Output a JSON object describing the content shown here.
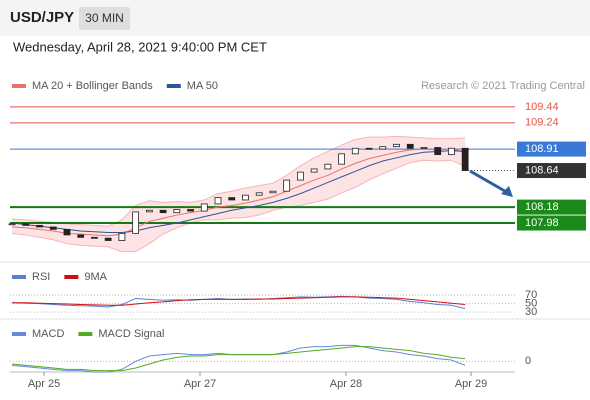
{
  "header": {
    "symbol": "USD/JPY",
    "timeframe": "30 MIN",
    "date": "Wednesday, April 28, 2021 9:40:00 PM CET",
    "credit": "Research © 2021 Trading Central"
  },
  "chart_data": [
    {
      "type": "candlestick",
      "values": [
        107.97,
        107.95,
        107.93,
        107.9,
        107.83,
        107.8,
        107.79,
        107.76,
        107.85,
        108.12,
        108.14,
        108.11,
        108.15,
        108.13,
        108.22,
        108.3,
        108.27,
        108.33,
        108.36,
        108.38,
        108.52,
        108.62,
        108.66,
        108.72,
        108.85,
        108.92,
        108.91,
        108.94,
        108.97,
        108.92,
        108.93,
        108.84,
        108.92,
        108.64
      ],
      "series": [
        {
          "name": "MA 20 + Bollinger Bands",
          "color": "#e8736c",
          "values": [
            107.93,
            107.92,
            107.9,
            107.88,
            107.85,
            107.84,
            107.83,
            107.82,
            107.84,
            107.92,
            108.0,
            108.04,
            108.08,
            108.11,
            108.14,
            108.18,
            108.2,
            108.23,
            108.27,
            108.31,
            108.38,
            108.45,
            108.52,
            108.58,
            108.66,
            108.73,
            108.79,
            108.83,
            108.87,
            108.9,
            108.91,
            108.9,
            108.91,
            108.87
          ],
          "upper": [
            108.03,
            108.02,
            108.0,
            107.99,
            107.97,
            107.96,
            107.95,
            107.94,
            108.02,
            108.2,
            108.26,
            108.24,
            108.25,
            108.24,
            108.27,
            108.35,
            108.38,
            108.42,
            108.45,
            108.48,
            108.58,
            108.7,
            108.8,
            108.88,
            108.96,
            109.03,
            109.06,
            109.06,
            109.07,
            109.06,
            109.05,
            109.04,
            109.04,
            109.05
          ],
          "lower": [
            107.85,
            107.83,
            107.8,
            107.77,
            107.72,
            107.7,
            107.69,
            107.68,
            107.62,
            107.62,
            107.72,
            107.84,
            107.92,
            107.98,
            108.02,
            108.02,
            108.04,
            108.05,
            108.08,
            108.14,
            108.18,
            108.2,
            108.24,
            108.28,
            108.36,
            108.43,
            108.52,
            108.6,
            108.67,
            108.74,
            108.77,
            108.76,
            108.77,
            108.69
          ]
        },
        {
          "name": "MA 50",
          "color": "#2f5597",
          "values": [
            107.98,
            107.96,
            107.94,
            107.92,
            107.9,
            107.88,
            107.87,
            107.86,
            107.86,
            107.88,
            107.92,
            107.95,
            107.98,
            108.02,
            108.06,
            108.1,
            108.14,
            108.17,
            108.2,
            108.24,
            108.29,
            108.35,
            108.42,
            108.49,
            108.56,
            108.63,
            108.7,
            108.76,
            108.8,
            108.84,
            108.87,
            108.88,
            108.89,
            108.88
          ]
        }
      ],
      "levels": [
        {
          "value": 109.44,
          "color": "#e8534a"
        },
        {
          "value": 109.24,
          "color": "#e8534a"
        },
        {
          "value": 108.91,
          "color": "#3a78d8"
        },
        {
          "value": 108.64,
          "color": "#333333"
        },
        {
          "value": 108.18,
          "color": "#1a8a1a"
        },
        {
          "value": 107.98,
          "color": "#1a8a1a"
        }
      ],
      "ylim": [
        107.54,
        109.59
      ],
      "xlim": [
        -0.15,
        36.63
      ],
      "xticks": [
        {
          "value": 2.33,
          "label": "Apr 25"
        },
        {
          "value": 13.69,
          "label": "Apr 27"
        },
        {
          "value": 24.32,
          "label": "Apr 28"
        },
        {
          "value": 33.43,
          "label": "Apr 29"
        }
      ]
    },
    {
      "type": "line",
      "series": [
        {
          "name": "RSI",
          "color": "#5b7fd0",
          "values": [
            52,
            51,
            50,
            48,
            46,
            45,
            44,
            42,
            48,
            62,
            60,
            58,
            59,
            58,
            60,
            62,
            60,
            61,
            60,
            62,
            64,
            66,
            65,
            66,
            67,
            66,
            63,
            62,
            60,
            55,
            52,
            48,
            46,
            38
          ]
        },
        {
          "name": "9MA",
          "color": "#cc1111",
          "values": [
            52,
            52,
            51,
            50,
            49,
            48,
            47,
            46,
            46,
            49,
            52,
            54,
            57,
            59,
            60,
            60,
            60,
            60,
            61,
            61,
            62,
            63,
            64,
            65,
            66,
            66,
            65,
            64,
            63,
            60,
            57,
            54,
            51,
            48
          ]
        }
      ],
      "ylim": [
        16,
        94
      ],
      "yticks": [
        70,
        50,
        30
      ]
    },
    {
      "type": "line",
      "series": [
        {
          "name": "MACD",
          "color": "#6688dd",
          "values": [
            -0.03,
            -0.04,
            -0.05,
            -0.06,
            -0.07,
            -0.07,
            -0.08,
            -0.08,
            -0.06,
            0.0,
            0.04,
            0.05,
            0.06,
            0.05,
            0.05,
            0.06,
            0.05,
            0.05,
            0.05,
            0.05,
            0.07,
            0.1,
            0.11,
            0.11,
            0.12,
            0.12,
            0.1,
            0.08,
            0.07,
            0.05,
            0.04,
            0.02,
            0.01,
            -0.03
          ]
        },
        {
          "name": "MACD Signal",
          "color": "#55aa22",
          "values": [
            -0.02,
            -0.03,
            -0.04,
            -0.05,
            -0.06,
            -0.06,
            -0.07,
            -0.07,
            -0.07,
            -0.05,
            -0.02,
            0.01,
            0.03,
            0.04,
            0.04,
            0.05,
            0.05,
            0.05,
            0.05,
            0.05,
            0.06,
            0.07,
            0.08,
            0.09,
            0.1,
            0.11,
            0.11,
            0.1,
            0.09,
            0.08,
            0.06,
            0.05,
            0.03,
            0.02
          ]
        }
      ],
      "ylim": [
        -0.08,
        0.16
      ],
      "yticks": [
        0
      ]
    }
  ]
}
